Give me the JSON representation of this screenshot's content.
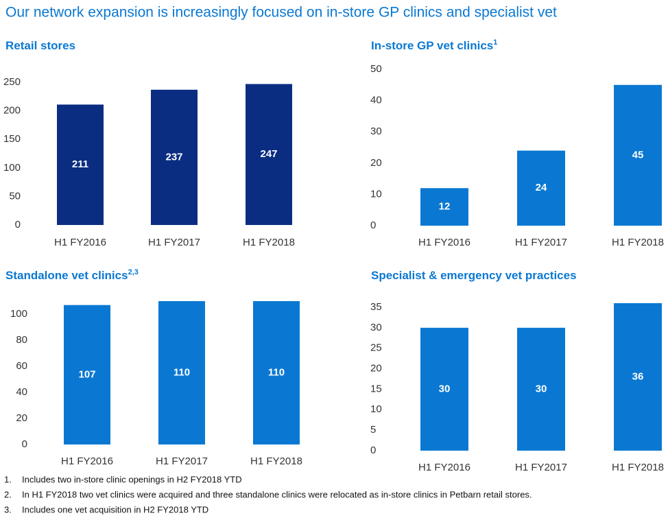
{
  "title": "Our network expansion is increasingly focused on in-store GP clinics and specialist vet",
  "chart_data": [
    {
      "type": "bar",
      "title": "Retail stores",
      "categories": [
        "H1 FY2016",
        "H1 FY2017",
        "H1 FY2018"
      ],
      "values": [
        211,
        237,
        247
      ],
      "color": "#0a2d82",
      "ylim": [
        0,
        250
      ],
      "yticks": [
        0,
        50,
        100,
        150,
        200,
        250
      ]
    },
    {
      "type": "bar",
      "title": "In-store GP vet clinics",
      "title_superscript": "1",
      "categories": [
        "H1 FY2016",
        "H1 FY2017",
        "H1 FY2018"
      ],
      "values": [
        12,
        24,
        45
      ],
      "color": "#0a78d2",
      "ylim": [
        0,
        50
      ],
      "yticks": [
        0,
        10,
        20,
        30,
        40,
        50
      ]
    },
    {
      "type": "bar",
      "title": "Standalone vet clinics",
      "title_superscript": "2,3",
      "categories": [
        "H1 FY2016",
        "H1 FY2017",
        "H1 FY2018"
      ],
      "values": [
        107,
        110,
        110
      ],
      "color": "#0a78d2",
      "ylim": [
        0,
        110
      ],
      "yticks": [
        0,
        20,
        40,
        60,
        80,
        100
      ]
    },
    {
      "type": "bar",
      "title": "Specialist & emergency vet practices",
      "categories": [
        "H1 FY2016",
        "H1 FY2017",
        "H1 FY2018"
      ],
      "values": [
        30,
        30,
        36
      ],
      "color": "#0a78d2",
      "ylim": [
        0,
        36
      ],
      "yticks": [
        0,
        5,
        10,
        15,
        20,
        25,
        30,
        35
      ]
    }
  ],
  "footnotes": [
    {
      "number": "1.",
      "text": "Includes two in-store clinic openings in H2 FY2018 YTD"
    },
    {
      "number": "2.",
      "text": "In H1 FY2018 two vet clinics were acquired and three standalone clinics were relocated as in-store clinics in Petbarn retail stores."
    },
    {
      "number": "3.",
      "text": "Includes one vet acquisition in H2 FY2018 YTD"
    }
  ]
}
